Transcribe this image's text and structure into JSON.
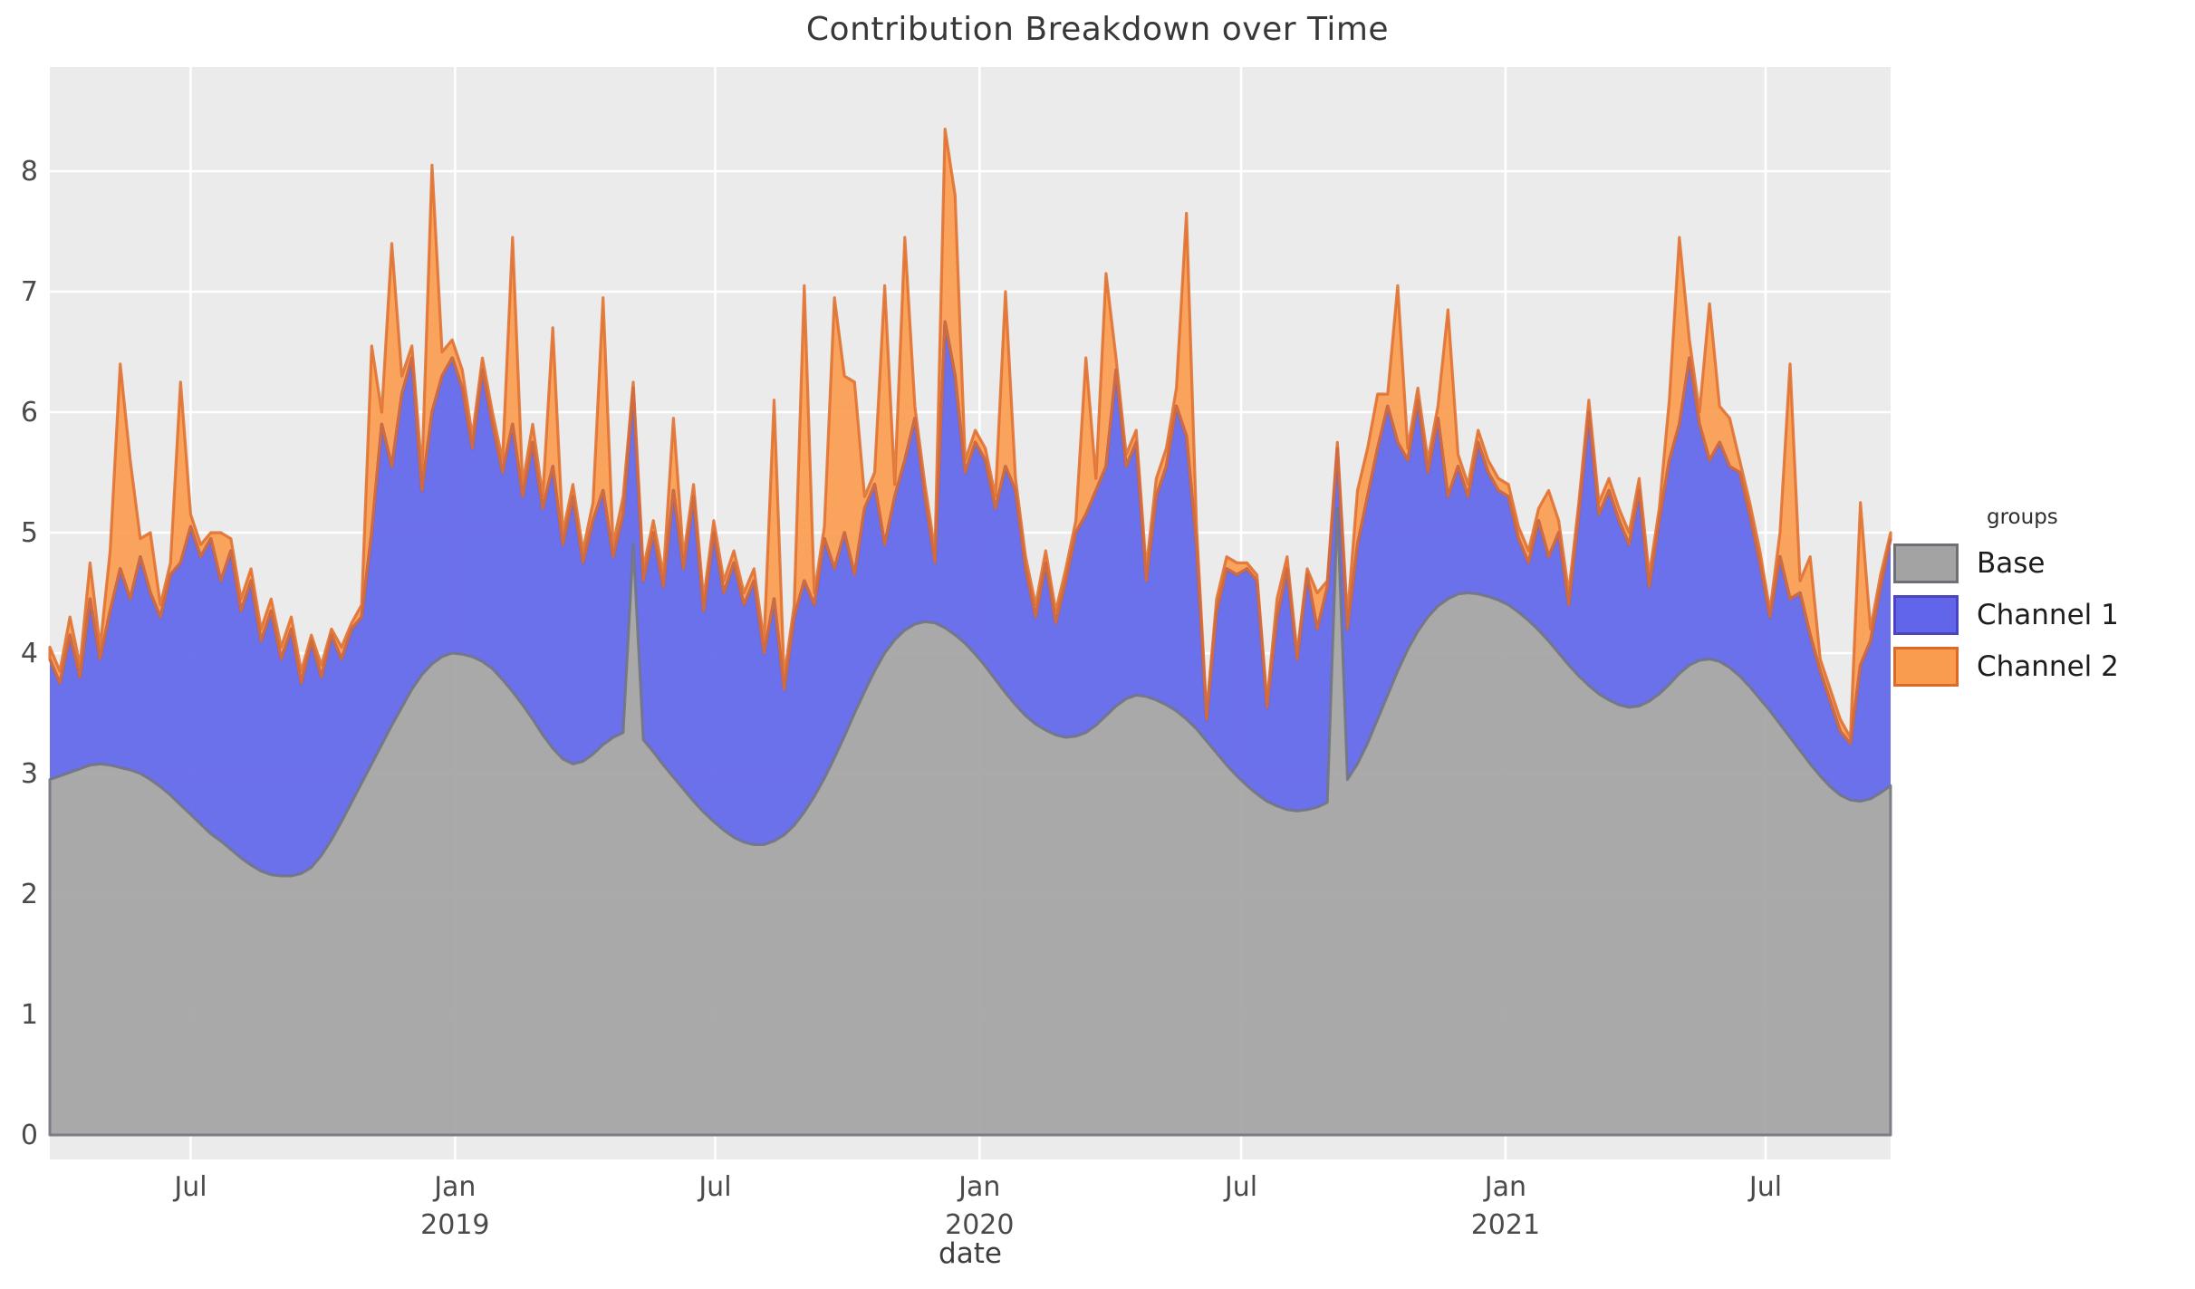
{
  "header": {
    "title": "Contribution Breakdown over Time"
  },
  "axes": {
    "x_label": "date",
    "y_ticks": [
      0,
      1,
      2,
      3,
      4,
      5,
      6,
      7,
      8
    ],
    "x_ticks": [
      {
        "label": "Jul",
        "year": "",
        "date": "2018-07-01"
      },
      {
        "label": "Jan",
        "year": "2019",
        "date": "2019-01-01"
      },
      {
        "label": "Jul",
        "year": "",
        "date": "2019-07-01"
      },
      {
        "label": "Jan",
        "year": "2020",
        "date": "2020-01-01"
      },
      {
        "label": "Jul",
        "year": "",
        "date": "2020-07-01"
      },
      {
        "label": "Jan",
        "year": "2021",
        "date": "2021-01-01"
      },
      {
        "label": "Jul",
        "year": "",
        "date": "2021-07-01"
      }
    ]
  },
  "legend": {
    "title": "groups",
    "items": [
      {
        "label": "Base",
        "fill": "#A3A3A3",
        "edge": "#6E7076"
      },
      {
        "label": "Channel 1",
        "fill": "#6065EA",
        "edge": "#4C44BF"
      },
      {
        "label": "Channel 2",
        "fill": "#FA9C50",
        "edge": "#DB6A28"
      }
    ]
  },
  "style": {
    "panel_bg": "#EBEBEB",
    "grid_color": "#FFFFFF",
    "text_color": "#4A4A4A",
    "fill_opacity": 0.92,
    "base_edge": "#72767F",
    "ch1_edge": "#4C44BF",
    "ch2_edge": "#E0702F"
  },
  "chart_data": {
    "type": "area",
    "stacked": true,
    "title": "Contribution Breakdown over Time",
    "xlabel": "date",
    "ylabel": "",
    "ylim": [
      -0.2,
      8.87
    ],
    "grid": true,
    "legend_position": "right",
    "legend_title": "groups",
    "start_date": "2018-03-25",
    "interval_days": 7,
    "x_range": [
      "2018-03-25",
      "2021-09-26"
    ],
    "series": [
      {
        "name": "Base",
        "values": [
          2.95,
          2.98,
          3.01,
          3.04,
          3.07,
          3.08,
          3.07,
          3.05,
          3.03,
          3.0,
          2.95,
          2.89,
          2.82,
          2.74,
          2.66,
          2.58,
          2.5,
          2.44,
          2.37,
          2.3,
          2.24,
          2.19,
          2.16,
          2.15,
          2.15,
          2.17,
          2.22,
          2.32,
          2.45,
          2.6,
          2.76,
          2.92,
          3.08,
          3.24,
          3.4,
          3.55,
          3.7,
          3.82,
          3.91,
          3.97,
          4.0,
          3.99,
          3.97,
          3.93,
          3.87,
          3.78,
          3.68,
          3.57,
          3.45,
          3.32,
          3.21,
          3.12,
          3.08,
          3.1,
          3.16,
          3.24,
          3.3,
          3.34,
          4.9,
          3.28,
          3.18,
          3.07,
          2.97,
          2.87,
          2.77,
          2.68,
          2.6,
          2.53,
          2.47,
          2.43,
          2.41,
          2.41,
          2.44,
          2.49,
          2.57,
          2.68,
          2.81,
          2.96,
          3.13,
          3.31,
          3.5,
          3.68,
          3.85,
          4.0,
          4.11,
          4.19,
          4.24,
          4.26,
          4.25,
          4.21,
          4.15,
          4.08,
          3.99,
          3.89,
          3.78,
          3.67,
          3.57,
          3.48,
          3.41,
          3.36,
          3.32,
          3.3,
          3.31,
          3.34,
          3.4,
          3.48,
          3.56,
          3.62,
          3.65,
          3.64,
          3.61,
          3.57,
          3.52,
          3.45,
          3.37,
          3.27,
          3.17,
          3.07,
          2.98,
          2.9,
          2.83,
          2.77,
          2.73,
          2.7,
          2.69,
          2.7,
          2.72,
          2.76,
          5.2,
          2.95,
          3.08,
          3.25,
          3.45,
          3.65,
          3.85,
          4.03,
          4.18,
          4.3,
          4.39,
          4.45,
          4.49,
          4.5,
          4.49,
          4.47,
          4.44,
          4.4,
          4.34,
          4.27,
          4.19,
          4.1,
          4.0,
          3.9,
          3.81,
          3.73,
          3.66,
          3.61,
          3.57,
          3.55,
          3.56,
          3.6,
          3.66,
          3.74,
          3.83,
          3.9,
          3.94,
          3.95,
          3.93,
          3.88,
          3.81,
          3.72,
          3.62,
          3.52,
          3.41,
          3.3,
          3.19,
          3.08,
          2.98,
          2.89,
          2.82,
          2.78,
          2.77,
          2.79,
          2.84,
          2.9
        ]
      },
      {
        "name": "Channel 1",
        "values": [
          1.0,
          0.77,
          1.14,
          0.76,
          1.38,
          0.87,
          1.28,
          1.65,
          1.42,
          1.8,
          1.55,
          1.41,
          1.83,
          2.01,
          2.39,
          2.22,
          2.45,
          2.16,
          2.48,
          2.05,
          2.36,
          1.91,
          2.19,
          1.8,
          2.05,
          1.58,
          1.88,
          1.48,
          1.7,
          1.35,
          1.44,
          1.38,
          1.92,
          2.66,
          2.15,
          2.6,
          2.75,
          1.53,
          2.09,
          2.33,
          2.45,
          2.21,
          1.73,
          2.42,
          2.03,
          1.72,
          2.22,
          1.73,
          2.3,
          1.88,
          2.34,
          1.78,
          2.22,
          1.65,
          1.94,
          2.11,
          1.5,
          1.81,
          1.3,
          1.32,
          1.82,
          1.48,
          2.38,
          1.83,
          2.53,
          1.67,
          2.4,
          1.97,
          2.28,
          1.97,
          2.19,
          1.59,
          2.01,
          1.21,
          1.73,
          1.92,
          1.59,
          1.99,
          1.57,
          1.69,
          1.15,
          1.52,
          1.55,
          0.9,
          1.19,
          1.41,
          1.71,
          1.04,
          0.5,
          2.54,
          2.15,
          1.42,
          1.76,
          1.71,
          1.42,
          1.88,
          1.78,
          1.22,
          0.89,
          1.39,
          0.93,
          1.3,
          1.69,
          1.81,
          1.95,
          2.07,
          2.79,
          1.93,
          2.1,
          0.96,
          1.69,
          1.98,
          2.53,
          2.35,
          1.53,
          0.18,
          1.18,
          1.63,
          1.67,
          1.8,
          1.77,
          0.78,
          1.57,
          2.0,
          1.26,
          1.95,
          1.48,
          1.79,
          0.5,
          1.25,
          1.82,
          2.05,
          2.25,
          2.4,
          1.9,
          1.57,
          1.92,
          1.2,
          1.56,
          0.85,
          1.06,
          0.8,
          1.26,
          1.03,
          0.91,
          0.9,
          0.61,
          0.48,
          0.91,
          0.7,
          1.0,
          0.5,
          1.34,
          2.27,
          1.49,
          1.74,
          1.53,
          1.35,
          1.79,
          0.95,
          1.44,
          1.86,
          2.07,
          2.55,
          1.96,
          1.65,
          1.82,
          1.67,
          1.69,
          1.43,
          1.13,
          0.78,
          1.39,
          1.15,
          1.31,
          1.07,
          0.87,
          0.71,
          0.53,
          0.47,
          1.13,
          1.31,
          1.71,
          2.05
        ]
      },
      {
        "name": "Channel 2",
        "values": [
          0.1,
          0.1,
          0.15,
          0.1,
          0.3,
          0.1,
          0.5,
          1.7,
          1.15,
          0.15,
          0.5,
          0.1,
          0.1,
          1.5,
          0.1,
          0.1,
          0.05,
          0.4,
          0.1,
          0.1,
          0.1,
          0.1,
          0.1,
          0.1,
          0.1,
          0.1,
          0.05,
          0.1,
          0.05,
          0.1,
          0.05,
          0.1,
          1.55,
          0.1,
          1.85,
          0.15,
          0.1,
          0.15,
          2.05,
          0.2,
          0.15,
          0.15,
          0.1,
          0.1,
          0.1,
          0.1,
          1.55,
          0.1,
          0.15,
          0.1,
          1.15,
          0.1,
          0.1,
          0.1,
          0.15,
          1.6,
          0.1,
          0.15,
          0.05,
          0.1,
          0.1,
          0.1,
          0.6,
          0.1,
          0.1,
          0.1,
          0.1,
          0.1,
          0.1,
          0.1,
          0.1,
          0.1,
          1.65,
          0.1,
          0.1,
          2.45,
          0.1,
          0.1,
          2.25,
          1.3,
          1.6,
          0.1,
          0.1,
          2.15,
          0.1,
          1.85,
          0.1,
          0.1,
          0.1,
          1.6,
          1.5,
          0.1,
          0.1,
          0.1,
          0.1,
          1.45,
          0.1,
          0.1,
          0.1,
          0.1,
          0.1,
          0.1,
          0.1,
          1.3,
          0.1,
          1.6,
          0.1,
          0.1,
          0.1,
          0.1,
          0.15,
          0.15,
          0.15,
          1.85,
          0.15,
          0.05,
          0.1,
          0.1,
          0.1,
          0.05,
          0.05,
          0.05,
          0.15,
          0.1,
          0.05,
          0.05,
          0.3,
          0.05,
          0.05,
          0.1,
          0.45,
          0.4,
          0.45,
          0.1,
          1.3,
          0.1,
          0.1,
          0.1,
          0.1,
          1.55,
          0.1,
          0.1,
          0.1,
          0.1,
          0.1,
          0.1,
          0.1,
          0.1,
          0.1,
          0.55,
          0.1,
          0.1,
          0.1,
          0.1,
          0.1,
          0.1,
          0.1,
          0.1,
          0.1,
          0.1,
          0.1,
          0.5,
          1.55,
          0.15,
          0.1,
          1.3,
          0.3,
          0.4,
          0.1,
          0.1,
          0.1,
          0.05,
          0.2,
          1.95,
          0.1,
          0.65,
          0.1,
          0.1,
          0.1,
          0.05,
          1.35,
          0.1,
          0.1,
          0.05
        ]
      }
    ]
  }
}
